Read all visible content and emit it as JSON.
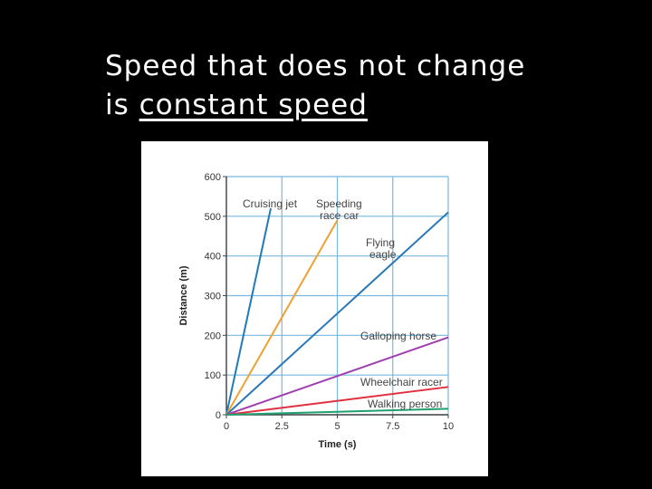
{
  "slide": {
    "title_line1": "Speed that does not change",
    "title_line2_prefix": "is ",
    "title_line2_term": "constant speed"
  },
  "chart_data": {
    "type": "line",
    "xlabel": "Time (s)",
    "ylabel": "Distance (m)",
    "xlim": [
      0,
      10
    ],
    "ylim": [
      0,
      600
    ],
    "xticks": [
      0,
      2.5,
      5,
      7.5,
      10
    ],
    "yticks": [
      0,
      100,
      200,
      300,
      400,
      500,
      600
    ],
    "x_tick_labels": [
      "0",
      "2.5",
      "5",
      "7.5",
      "10"
    ],
    "y_tick_labels": [
      "0",
      "100",
      "200",
      "300",
      "400",
      "500",
      "600"
    ],
    "grid": true,
    "grid_color": "#7ab8dd",
    "series": [
      {
        "name": "Cruising jet",
        "label_lines": [
          "Cruising jet"
        ],
        "color": "#1f7bb8",
        "points": [
          [
            0,
            0
          ],
          [
            2,
            520
          ]
        ]
      },
      {
        "name": "Speeding race car",
        "label_lines": [
          "Speeding",
          "race car"
        ],
        "color": "#f0a030",
        "points": [
          [
            0,
            0
          ],
          [
            5,
            490
          ]
        ]
      },
      {
        "name": "Flying eagle",
        "label_lines": [
          "Flying",
          "eagle"
        ],
        "color": "#2a78b8",
        "points": [
          [
            0,
            0
          ],
          [
            10,
            510
          ]
        ]
      },
      {
        "name": "Galloping horse",
        "label_lines": [
          "Galloping horse"
        ],
        "color": "#a040b0",
        "points": [
          [
            0,
            0
          ],
          [
            10,
            195
          ]
        ]
      },
      {
        "name": "Wheelchair racer",
        "label_lines": [
          "Wheelchair racer"
        ],
        "color": "#e03040",
        "points": [
          [
            0,
            0
          ],
          [
            10,
            70
          ]
        ]
      },
      {
        "name": "Walking person",
        "label_lines": [
          "Walking person"
        ],
        "color": "#20a070",
        "points": [
          [
            0,
            0
          ],
          [
            10,
            15
          ]
        ]
      }
    ]
  }
}
